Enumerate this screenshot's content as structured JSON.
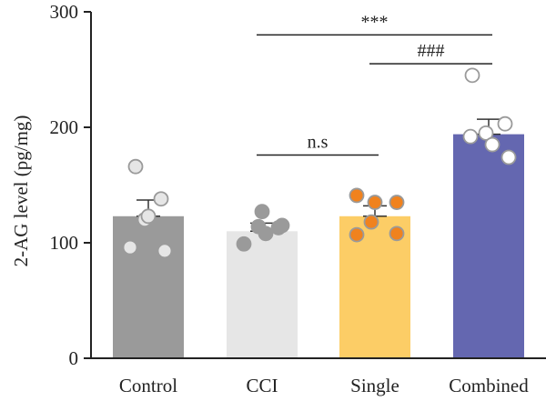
{
  "chart_data": {
    "type": "bar",
    "title": "",
    "xlabel": "",
    "ylabel": "2-AG level (pg/mg)",
    "ylim": [
      0,
      300
    ],
    "yticks": [
      0,
      100,
      200,
      300
    ],
    "grid": false,
    "categories": [
      "Control",
      "CCI",
      "Single",
      "Combined"
    ],
    "values": [
      123,
      110,
      123,
      194
    ],
    "errors": [
      14,
      7,
      9,
      13
    ],
    "bar_colors": [
      "#9a9a9a",
      "#e6e6e6",
      "#fccd66",
      "#6467b0"
    ],
    "point_fill": [
      "#e6e6e6",
      "#9a9a9a",
      "#f0821e",
      "#ffffff"
    ],
    "point_stroke": [
      "#9a9a9a",
      "#9a9a9a",
      "#9a9a9a",
      "#9a9a9a"
    ],
    "points": [
      [
        166,
        138,
        120,
        96,
        93,
        123
      ],
      [
        127,
        115,
        99,
        114,
        108,
        113
      ],
      [
        141,
        135,
        107,
        135,
        108,
        118
      ],
      [
        245,
        203,
        195,
        185,
        174,
        192
      ]
    ],
    "significance": [
      {
        "from": 1,
        "to": 3,
        "label": "***",
        "y": 280
      },
      {
        "from": 2,
        "to": 3,
        "label": "###",
        "y": 255
      },
      {
        "from": 1,
        "to": 2,
        "label": "n.s",
        "y": 176
      }
    ]
  }
}
